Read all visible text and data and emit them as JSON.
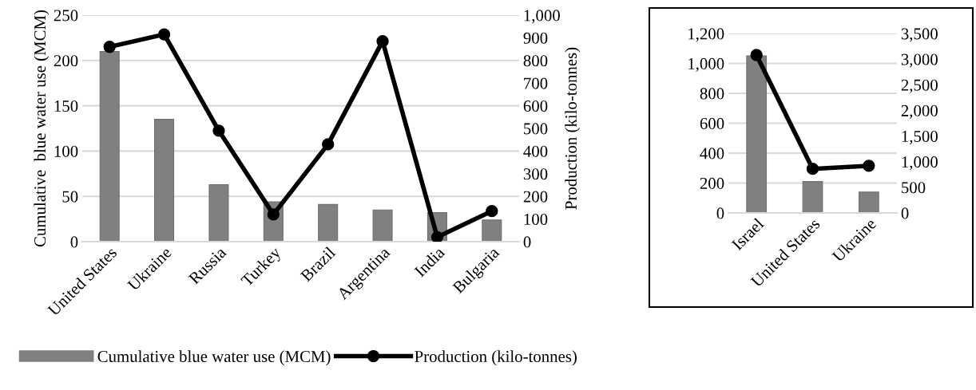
{
  "chart_data": [
    {
      "type": "bar",
      "categories": [
        "United States",
        "Ukraine",
        "Russia",
        "Turkey",
        "Brazil",
        "Argentina",
        "India",
        "Bulgaria"
      ],
      "ylabel": "Cumulative  blue water use (MCM)",
      "y2label": "Production (kilo-tonnes)",
      "ylim": [
        0,
        250
      ],
      "yticks": [
        0,
        50,
        100,
        150,
        200,
        250
      ],
      "y2lim": [
        0,
        1000
      ],
      "y2ticks": [
        0,
        100,
        200,
        300,
        400,
        500,
        600,
        700,
        800,
        900,
        {
          "value": 1000,
          "label": "1,000"
        }
      ],
      "grid": "y",
      "legend": "bottom",
      "marker": "circle",
      "series": [
        {
          "name": "Cumulative blue water use (MCM)",
          "color": "#808080",
          "values": [
            210,
            135,
            63,
            44,
            41,
            35,
            32,
            24
          ]
        },
        {
          "name": "Production (kilo-tonnes)",
          "type": "line",
          "axis": "y2",
          "color": "#000000",
          "values": [
            860,
            915,
            490,
            120,
            430,
            885,
            20,
            135
          ]
        }
      ]
    },
    {
      "type": "bar",
      "categories": [
        "Israel",
        "United States",
        "Ukraine"
      ],
      "ylim": [
        0,
        1200
      ],
      "yticks": [
        0,
        200,
        400,
        600,
        800,
        {
          "value": 1000,
          "label": "1,000"
        },
        {
          "value": 1200,
          "label": "1,200"
        }
      ],
      "y2lim": [
        0,
        3500
      ],
      "y2ticks": [
        0,
        500,
        {
          "value": 1000,
          "label": "1,000"
        },
        {
          "value": 1500,
          "label": "1,500"
        },
        {
          "value": 2000,
          "label": "2,000"
        },
        {
          "value": 2500,
          "label": "2,500"
        },
        {
          "value": 3000,
          "label": "3,000"
        },
        {
          "value": 3500,
          "label": "3,500"
        }
      ],
      "grid": "y",
      "marker": "circle",
      "series": [
        {
          "color": "#808080",
          "values": [
            1050,
            210,
            140
          ]
        },
        {
          "type": "line",
          "axis": "y2",
          "color": "#000000",
          "values": [
            3080,
            860,
            920
          ]
        }
      ]
    }
  ]
}
